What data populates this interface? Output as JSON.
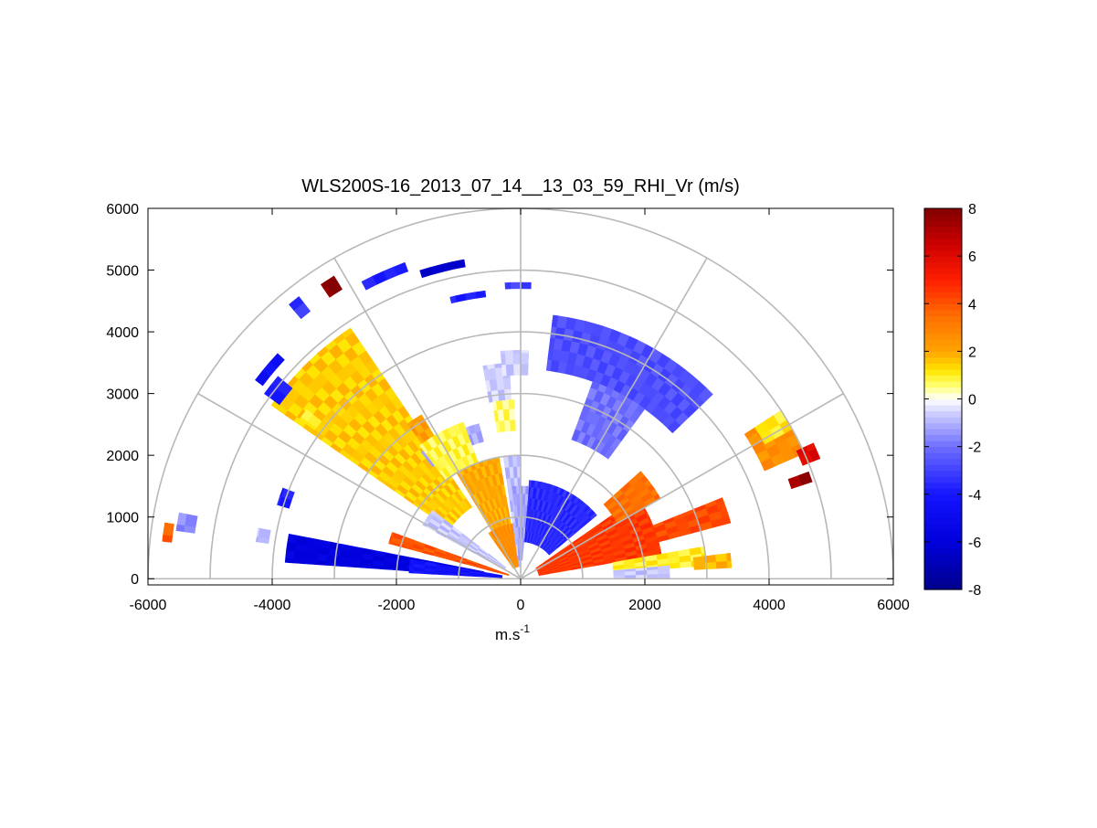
{
  "chart_data": {
    "type": "heatmap",
    "title": "WLS200S-16_2013_07_14__13_03_59_RHI_Vr (m/s)",
    "xlabel": "m.s",
    "xlabel_superscript": "-1",
    "ylabel": "",
    "xlim": [
      -6000,
      6000
    ],
    "ylim": [
      0,
      6000
    ],
    "x_ticks": [
      "-6000",
      "-4000",
      "-2000",
      "0",
      "2000",
      "4000",
      "6000"
    ],
    "y_ticks": [
      "0",
      "1000",
      "2000",
      "3000",
      "4000",
      "5000",
      "6000"
    ],
    "polar_grid": {
      "ranges": [
        1000,
        2000,
        3000,
        4000,
        5000,
        6000
      ],
      "angles_deg": [
        0,
        30,
        60,
        90,
        120,
        150,
        180
      ]
    },
    "colorbar": {
      "range": [
        -8,
        8
      ],
      "ticks": [
        "8",
        "6",
        "4",
        "2",
        "0",
        "-2",
        "-4",
        "-6",
        "-8"
      ],
      "colormap": "blue-white-red (cold-to-hot)"
    },
    "colors": {
      "strong_negative": "#00008b",
      "negative": "#0000ff",
      "weak_negative": "#b8b8ff",
      "zero": "#ffffff",
      "weak_positive": "#ffff00",
      "positive": "#ff8c00",
      "strong_positive": "#8b0000"
    },
    "sectors": [
      {
        "r0": 1400,
        "r1": 4900,
        "a0": 124,
        "a1": 145,
        "v": 1.5
      },
      {
        "r0": 2500,
        "r1": 3100,
        "a0": 121,
        "a1": 126,
        "v": 2.2
      },
      {
        "r0": 2900,
        "r1": 3500,
        "a0": 93,
        "a1": 100,
        "v": -0.6
      },
      {
        "r0": 2400,
        "r1": 2900,
        "a0": 92,
        "a1": 99,
        "v": 0.6
      },
      {
        "r0": 3300,
        "r1": 3700,
        "a0": 88,
        "a1": 95,
        "v": -0.6
      },
      {
        "r0": 2300,
        "r1": 2600,
        "a0": 105,
        "a1": 128,
        "v": -1.1
      },
      {
        "r0": 3400,
        "r1": 4300,
        "a0": 44,
        "a1": 83,
        "v": -2.7
      },
      {
        "r0": 2400,
        "r1": 3400,
        "a0": 54,
        "a1": 70,
        "v": -2.0
      },
      {
        "r0": 300,
        "r1": 2000,
        "a0": 100,
        "a1": 121,
        "v": 2.0
      },
      {
        "r0": 2000,
        "r1": 2700,
        "a0": 110,
        "a1": 127,
        "v": 0.8
      },
      {
        "r0": 200,
        "r1": 900,
        "a0": 95,
        "a1": 125,
        "v": 2.6
      },
      {
        "r0": 200,
        "r1": 2000,
        "a0": 90,
        "a1": 98,
        "v": -0.8
      },
      {
        "r0": 600,
        "r1": 3800,
        "a0": 169,
        "a1": 176,
        "v": -5.8
      },
      {
        "r0": 300,
        "r1": 1800,
        "a0": 170,
        "a1": 177,
        "v": -4.2
      },
      {
        "r0": 200,
        "r1": 2200,
        "a0": 160,
        "a1": 165,
        "v": 4.0
      },
      {
        "r0": 300,
        "r1": 1800,
        "a0": 142,
        "a1": 151,
        "v": -0.7
      },
      {
        "r0": 300,
        "r1": 2300,
        "a0": 10,
        "a1": 35,
        "v": 4.5
      },
      {
        "r0": 2300,
        "r1": 3500,
        "a0": 15,
        "a1": 22,
        "v": 4.2
      },
      {
        "r0": 1800,
        "r1": 2600,
        "a0": 30,
        "a1": 42,
        "v": 3.4
      },
      {
        "r0": 1500,
        "r1": 3000,
        "a0": 4,
        "a1": 10,
        "v": 1.0
      },
      {
        "r0": 2800,
        "r1": 3400,
        "a0": 3,
        "a1": 7,
        "v": 1.8
      },
      {
        "r0": 600,
        "r1": 1600,
        "a0": 40,
        "a1": 85,
        "v": -3.5
      },
      {
        "r0": 300,
        "r1": 1500,
        "a0": 85,
        "a1": 95,
        "v": -1.2
      },
      {
        "r0": 1500,
        "r1": 2400,
        "a0": 0,
        "a1": 5,
        "v": -0.7
      },
      {
        "r0": 4300,
        "r1": 5000,
        "a0": 24,
        "a1": 33,
        "v": 2.6
      },
      {
        "r0": 4500,
        "r1": 5000,
        "a0": 29,
        "a1": 33,
        "v": 1.1
      },
      {
        "r0": 4900,
        "r1": 5200,
        "a0": 22,
        "a1": 25,
        "v": 6.0
      },
      {
        "r0": 4600,
        "r1": 4950,
        "a0": 18.5,
        "a1": 20.5,
        "v": 7.5
      },
      {
        "r0": 5500,
        "r1": 5750,
        "a0": 121.5,
        "a1": 124,
        "v": 7.8
      },
      {
        "r0": 5500,
        "r1": 5800,
        "a0": 128,
        "a1": 130,
        "v": -3.3
      },
      {
        "r0": 5300,
        "r1": 5450,
        "a0": 110,
        "a1": 118,
        "v": -3.8
      },
      {
        "r0": 5130,
        "r1": 5250,
        "a0": 100,
        "a1": 108,
        "v": -6.4
      },
      {
        "r0": 4600,
        "r1": 4700,
        "a0": 97,
        "a1": 104,
        "v": -3.8
      },
      {
        "r0": 4700,
        "r1": 4800,
        "a0": 88,
        "a1": 93,
        "v": -3.0
      },
      {
        "r0": 5200,
        "r1": 5350,
        "a0": 137,
        "a1": 143,
        "v": -4.5
      },
      {
        "r0": 4800,
        "r1": 5100,
        "a0": 140,
        "a1": 144,
        "v": -3.8
      },
      {
        "r0": 4100,
        "r1": 4400,
        "a0": 141.5,
        "a1": 144,
        "v": 1.0
      },
      {
        "r0": 3900,
        "r1": 4100,
        "a0": 159,
        "a1": 163,
        "v": -3.8
      },
      {
        "r0": 4100,
        "r1": 4300,
        "a0": 169,
        "a1": 172,
        "v": -0.9
      },
      {
        "r0": 5300,
        "r1": 5600,
        "a0": 169,
        "a1": 172,
        "v": -1.6
      },
      {
        "r0": 5650,
        "r1": 5800,
        "a0": 171,
        "a1": 174,
        "v": 3.8
      }
    ]
  }
}
